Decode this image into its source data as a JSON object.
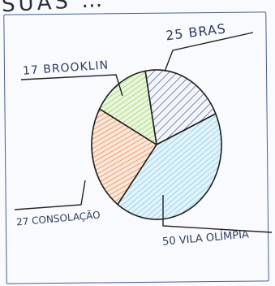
{
  "chart_data": {
    "type": "pie",
    "title": "SUAS …",
    "slices": [
      {
        "label": "25 BRAS",
        "value": 25,
        "color": "#3e4f86"
      },
      {
        "label": "50 VILA OLÍMPIA",
        "value": 50,
        "color": "#7fc8e6"
      },
      {
        "label": "27 CONSOLAÇÃO",
        "value": 27,
        "color": "#e0783a"
      },
      {
        "label": "17 BROOKLIN",
        "value": 17,
        "color": "#8ccd52"
      }
    ]
  }
}
